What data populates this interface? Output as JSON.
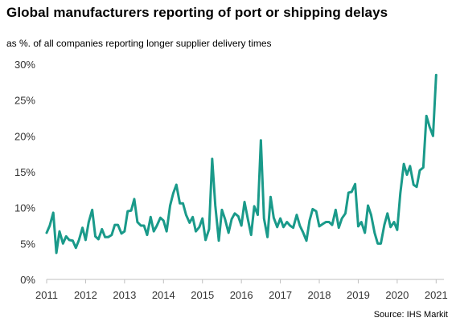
{
  "title": "Global manufacturers reporting of port or shipping delays",
  "subtitle": "as %. of all companies reporting longer supplier delivery times",
  "source": "Source: IHS Markit",
  "colors": {
    "line": "#1a9a8a",
    "axis": "#bfbfbf",
    "grid": "#e0e0e0"
  },
  "chart_data": {
    "type": "line",
    "title": "Global manufacturers reporting of port or shipping delays",
    "subtitle": "as %. of all companies reporting longer supplier delivery times",
    "xlabel": "",
    "ylabel": "",
    "ylim": [
      0,
      30
    ],
    "xlim": [
      2011,
      2021.2
    ],
    "grid": false,
    "y_ticks": [
      0,
      5,
      10,
      15,
      20,
      25,
      30
    ],
    "y_tick_labels": [
      "0%",
      "5%",
      "10%",
      "15%",
      "20%",
      "25%",
      "30%"
    ],
    "x_ticks": [
      2011,
      2012,
      2013,
      2014,
      2015,
      2016,
      2017,
      2018,
      2019,
      2020,
      2021
    ],
    "x_tick_labels": [
      "2011",
      "2012",
      "2013",
      "2014",
      "2015",
      "2016",
      "2017",
      "2018",
      "2019",
      "2020",
      "2021"
    ],
    "series": [
      {
        "values": [
          [
            2011.0,
            6.5
          ],
          [
            2011.08,
            7.5
          ],
          [
            2011.17,
            9.3
          ],
          [
            2011.25,
            3.7
          ],
          [
            2011.33,
            6.7
          ],
          [
            2011.42,
            5.0
          ],
          [
            2011.5,
            6.0
          ],
          [
            2011.58,
            5.5
          ],
          [
            2011.67,
            5.4
          ],
          [
            2011.75,
            4.4
          ],
          [
            2011.83,
            5.5
          ],
          [
            2011.92,
            7.2
          ],
          [
            2012.0,
            5.5
          ],
          [
            2012.08,
            8.0
          ],
          [
            2012.17,
            9.7
          ],
          [
            2012.25,
            6.0
          ],
          [
            2012.33,
            5.6
          ],
          [
            2012.42,
            7.0
          ],
          [
            2012.5,
            5.9
          ],
          [
            2012.58,
            5.9
          ],
          [
            2012.67,
            6.2
          ],
          [
            2012.75,
            7.6
          ],
          [
            2012.83,
            7.6
          ],
          [
            2012.92,
            6.4
          ],
          [
            2013.0,
            6.7
          ],
          [
            2013.08,
            9.5
          ],
          [
            2013.17,
            9.6
          ],
          [
            2013.25,
            11.2
          ],
          [
            2013.33,
            8.0
          ],
          [
            2013.42,
            7.5
          ],
          [
            2013.5,
            7.5
          ],
          [
            2013.58,
            6.2
          ],
          [
            2013.67,
            8.7
          ],
          [
            2013.75,
            6.7
          ],
          [
            2013.83,
            7.5
          ],
          [
            2013.92,
            8.6
          ],
          [
            2014.0,
            8.2
          ],
          [
            2014.08,
            6.7
          ],
          [
            2014.17,
            10.3
          ],
          [
            2014.25,
            12.0
          ],
          [
            2014.33,
            13.2
          ],
          [
            2014.42,
            10.6
          ],
          [
            2014.5,
            10.6
          ],
          [
            2014.58,
            9.0
          ],
          [
            2014.67,
            7.9
          ],
          [
            2014.75,
            8.7
          ],
          [
            2014.83,
            6.7
          ],
          [
            2014.92,
            7.3
          ],
          [
            2015.0,
            8.5
          ],
          [
            2015.08,
            5.5
          ],
          [
            2015.17,
            7.0
          ],
          [
            2015.25,
            16.8
          ],
          [
            2015.33,
            10.3
          ],
          [
            2015.42,
            5.4
          ],
          [
            2015.5,
            9.7
          ],
          [
            2015.58,
            8.4
          ],
          [
            2015.67,
            6.5
          ],
          [
            2015.75,
            8.4
          ],
          [
            2015.83,
            9.2
          ],
          [
            2015.92,
            8.8
          ],
          [
            2016.0,
            7.5
          ],
          [
            2016.08,
            10.8
          ],
          [
            2016.17,
            8.3
          ],
          [
            2016.25,
            6.2
          ],
          [
            2016.33,
            10.2
          ],
          [
            2016.42,
            9.0
          ],
          [
            2016.5,
            19.4
          ],
          [
            2016.58,
            8.5
          ],
          [
            2016.67,
            5.9
          ],
          [
            2016.75,
            11.5
          ],
          [
            2016.83,
            8.6
          ],
          [
            2016.92,
            7.3
          ],
          [
            2017.0,
            8.5
          ],
          [
            2017.08,
            7.3
          ],
          [
            2017.17,
            8.0
          ],
          [
            2017.25,
            7.5
          ],
          [
            2017.33,
            7.2
          ],
          [
            2017.42,
            9.0
          ],
          [
            2017.5,
            7.5
          ],
          [
            2017.58,
            6.6
          ],
          [
            2017.67,
            5.4
          ],
          [
            2017.75,
            8.2
          ],
          [
            2017.83,
            9.8
          ],
          [
            2017.92,
            9.5
          ],
          [
            2018.0,
            7.4
          ],
          [
            2018.08,
            7.7
          ],
          [
            2018.17,
            8.0
          ],
          [
            2018.25,
            8.0
          ],
          [
            2018.33,
            7.6
          ],
          [
            2018.42,
            9.7
          ],
          [
            2018.5,
            7.2
          ],
          [
            2018.58,
            8.5
          ],
          [
            2018.67,
            9.2
          ],
          [
            2018.75,
            12.1
          ],
          [
            2018.83,
            12.2
          ],
          [
            2018.92,
            13.3
          ],
          [
            2019.0,
            7.4
          ],
          [
            2019.08,
            8.0
          ],
          [
            2019.17,
            6.5
          ],
          [
            2019.25,
            10.3
          ],
          [
            2019.33,
            9.0
          ],
          [
            2019.42,
            6.5
          ],
          [
            2019.5,
            5.0
          ],
          [
            2019.58,
            5.0
          ],
          [
            2019.67,
            7.6
          ],
          [
            2019.75,
            9.2
          ],
          [
            2019.83,
            7.3
          ],
          [
            2019.92,
            8.0
          ],
          [
            2020.0,
            6.9
          ],
          [
            2020.08,
            12.0
          ],
          [
            2020.17,
            16.1
          ],
          [
            2020.25,
            14.6
          ],
          [
            2020.33,
            15.8
          ],
          [
            2020.42,
            13.2
          ],
          [
            2020.5,
            12.9
          ],
          [
            2020.58,
            15.2
          ],
          [
            2020.67,
            15.6
          ],
          [
            2020.75,
            22.8
          ],
          [
            2020.83,
            21.3
          ],
          [
            2020.92,
            20.0
          ],
          [
            2021.0,
            28.5
          ]
        ]
      }
    ]
  }
}
